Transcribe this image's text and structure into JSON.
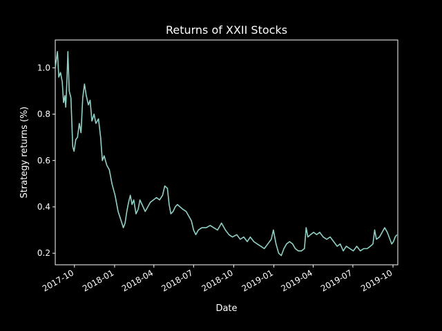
{
  "chart_data": {
    "type": "line",
    "title": "Returns of XXII Stocks",
    "xlabel": "Date",
    "ylabel": "Strategy returns (%)",
    "grid": false,
    "legend": "none",
    "xlim": [
      "2017-08-18",
      "2019-10-12"
    ],
    "ylim": [
      0.15,
      1.12
    ],
    "x_ticks": [
      {
        "date": "2017-10-01",
        "label": "2017-10"
      },
      {
        "date": "2018-01-01",
        "label": "2018-01"
      },
      {
        "date": "2018-04-01",
        "label": "2018-04"
      },
      {
        "date": "2018-07-01",
        "label": "2018-07"
      },
      {
        "date": "2018-10-01",
        "label": "2018-10"
      },
      {
        "date": "2019-01-01",
        "label": "2019-01"
      },
      {
        "date": "2019-04-01",
        "label": "2019-04"
      },
      {
        "date": "2019-07-01",
        "label": "2019-07"
      },
      {
        "date": "2019-10-01",
        "label": "2019-10"
      }
    ],
    "y_ticks": [
      {
        "value": 0.2,
        "label": "0.2"
      },
      {
        "value": 0.4,
        "label": "0.4"
      },
      {
        "value": 0.6,
        "label": "0.6"
      },
      {
        "value": 0.8,
        "label": "0.8"
      },
      {
        "value": 1.0,
        "label": "1.0"
      }
    ],
    "series": [
      {
        "color": "#8dd3c7",
        "points": [
          [
            "2017-08-18",
            1.0
          ],
          [
            "2017-08-23",
            1.07
          ],
          [
            "2017-08-26",
            0.96
          ],
          [
            "2017-08-30",
            0.98
          ],
          [
            "2017-09-03",
            0.94
          ],
          [
            "2017-09-06",
            0.85
          ],
          [
            "2017-09-09",
            0.88
          ],
          [
            "2017-09-11",
            0.83
          ],
          [
            "2017-09-14",
            0.96
          ],
          [
            "2017-09-16",
            1.07
          ],
          [
            "2017-09-19",
            0.9
          ],
          [
            "2017-09-23",
            0.87
          ],
          [
            "2017-09-27",
            0.66
          ],
          [
            "2017-09-30",
            0.64
          ],
          [
            "2017-10-04",
            0.69
          ],
          [
            "2017-10-08",
            0.7
          ],
          [
            "2017-10-12",
            0.76
          ],
          [
            "2017-10-16",
            0.72
          ],
          [
            "2017-10-20",
            0.87
          ],
          [
            "2017-10-24",
            0.93
          ],
          [
            "2017-10-28",
            0.88
          ],
          [
            "2017-11-02",
            0.84
          ],
          [
            "2017-11-06",
            0.86
          ],
          [
            "2017-11-10",
            0.77
          ],
          [
            "2017-11-15",
            0.8
          ],
          [
            "2017-11-19",
            0.76
          ],
          [
            "2017-11-25",
            0.78
          ],
          [
            "2017-11-30",
            0.7
          ],
          [
            "2017-12-04",
            0.6
          ],
          [
            "2017-12-08",
            0.62
          ],
          [
            "2017-12-14",
            0.58
          ],
          [
            "2017-12-20",
            0.56
          ],
          [
            "2017-12-26",
            0.5
          ],
          [
            "2018-01-02",
            0.45
          ],
          [
            "2018-01-09",
            0.38
          ],
          [
            "2018-01-16",
            0.34
          ],
          [
            "2018-01-21",
            0.31
          ],
          [
            "2018-01-25",
            0.33
          ],
          [
            "2018-01-29",
            0.38
          ],
          [
            "2018-02-02",
            0.42
          ],
          [
            "2018-02-06",
            0.45
          ],
          [
            "2018-02-10",
            0.41
          ],
          [
            "2018-02-14",
            0.43
          ],
          [
            "2018-02-19",
            0.37
          ],
          [
            "2018-02-24",
            0.39
          ],
          [
            "2018-02-28",
            0.43
          ],
          [
            "2018-03-05",
            0.41
          ],
          [
            "2018-03-12",
            0.38
          ],
          [
            "2018-03-18",
            0.4
          ],
          [
            "2018-03-24",
            0.42
          ],
          [
            "2018-03-31",
            0.43
          ],
          [
            "2018-04-07",
            0.44
          ],
          [
            "2018-04-14",
            0.43
          ],
          [
            "2018-04-21",
            0.45
          ],
          [
            "2018-04-26",
            0.49
          ],
          [
            "2018-05-02",
            0.48
          ],
          [
            "2018-05-06",
            0.41
          ],
          [
            "2018-05-10",
            0.37
          ],
          [
            "2018-05-15",
            0.38
          ],
          [
            "2018-05-20",
            0.4
          ],
          [
            "2018-05-25",
            0.41
          ],
          [
            "2018-05-31",
            0.4
          ],
          [
            "2018-06-06",
            0.39
          ],
          [
            "2018-06-14",
            0.38
          ],
          [
            "2018-06-20",
            0.36
          ],
          [
            "2018-06-26",
            0.34
          ],
          [
            "2018-07-01",
            0.3
          ],
          [
            "2018-07-06",
            0.28
          ],
          [
            "2018-07-12",
            0.3
          ],
          [
            "2018-07-20",
            0.31
          ],
          [
            "2018-07-30",
            0.31
          ],
          [
            "2018-08-08",
            0.32
          ],
          [
            "2018-08-16",
            0.31
          ],
          [
            "2018-08-25",
            0.3
          ],
          [
            "2018-09-03",
            0.33
          ],
          [
            "2018-09-12",
            0.3
          ],
          [
            "2018-09-20",
            0.28
          ],
          [
            "2018-09-28",
            0.27
          ],
          [
            "2018-10-08",
            0.28
          ],
          [
            "2018-10-16",
            0.26
          ],
          [
            "2018-10-24",
            0.27
          ],
          [
            "2018-11-01",
            0.25
          ],
          [
            "2018-11-08",
            0.27
          ],
          [
            "2018-11-16",
            0.25
          ],
          [
            "2018-11-24",
            0.24
          ],
          [
            "2018-12-02",
            0.23
          ],
          [
            "2018-12-10",
            0.22
          ],
          [
            "2018-12-18",
            0.24
          ],
          [
            "2018-12-26",
            0.26
          ],
          [
            "2018-12-31",
            0.3
          ],
          [
            "2019-01-06",
            0.24
          ],
          [
            "2019-01-12",
            0.2
          ],
          [
            "2019-01-18",
            0.19
          ],
          [
            "2019-01-24",
            0.22
          ],
          [
            "2019-01-30",
            0.24
          ],
          [
            "2019-02-06",
            0.25
          ],
          [
            "2019-02-13",
            0.24
          ],
          [
            "2019-02-19",
            0.22
          ],
          [
            "2019-02-26",
            0.21
          ],
          [
            "2019-03-05",
            0.21
          ],
          [
            "2019-03-12",
            0.22
          ],
          [
            "2019-03-16",
            0.31
          ],
          [
            "2019-03-20",
            0.27
          ],
          [
            "2019-03-26",
            0.28
          ],
          [
            "2019-04-02",
            0.29
          ],
          [
            "2019-04-09",
            0.28
          ],
          [
            "2019-04-16",
            0.29
          ],
          [
            "2019-04-24",
            0.27
          ],
          [
            "2019-05-02",
            0.26
          ],
          [
            "2019-05-10",
            0.27
          ],
          [
            "2019-05-18",
            0.25
          ],
          [
            "2019-05-26",
            0.23
          ],
          [
            "2019-06-02",
            0.24
          ],
          [
            "2019-06-09",
            0.21
          ],
          [
            "2019-06-16",
            0.23
          ],
          [
            "2019-06-24",
            0.22
          ],
          [
            "2019-07-02",
            0.21
          ],
          [
            "2019-07-10",
            0.23
          ],
          [
            "2019-07-18",
            0.21
          ],
          [
            "2019-07-26",
            0.22
          ],
          [
            "2019-08-03",
            0.22
          ],
          [
            "2019-08-10",
            0.23
          ],
          [
            "2019-08-16",
            0.24
          ],
          [
            "2019-08-20",
            0.3
          ],
          [
            "2019-08-24",
            0.26
          ],
          [
            "2019-08-31",
            0.27
          ],
          [
            "2019-09-06",
            0.29
          ],
          [
            "2019-09-12",
            0.31
          ],
          [
            "2019-09-18",
            0.29
          ],
          [
            "2019-09-24",
            0.26
          ],
          [
            "2019-09-28",
            0.24
          ],
          [
            "2019-10-02",
            0.25
          ],
          [
            "2019-10-06",
            0.27
          ],
          [
            "2019-10-10",
            0.28
          ]
        ]
      }
    ]
  }
}
